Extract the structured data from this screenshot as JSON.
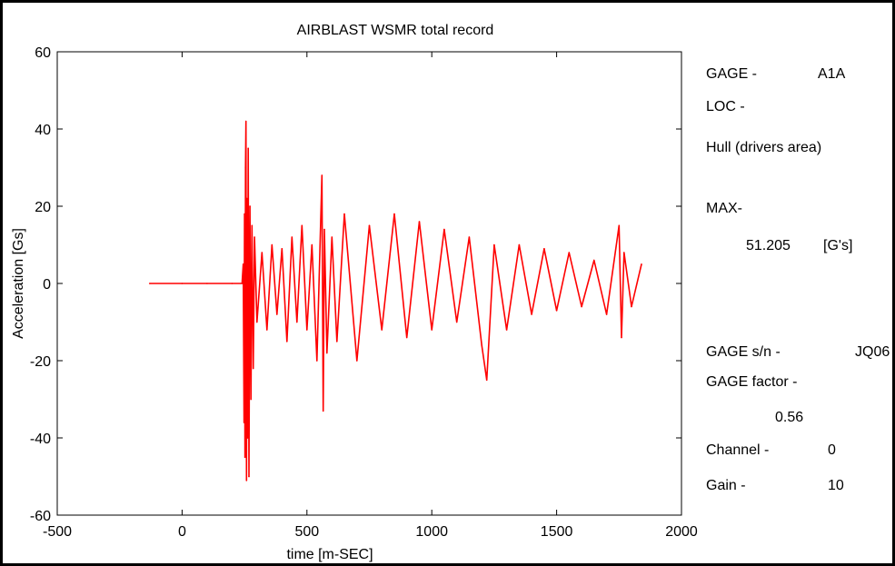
{
  "chart_data": {
    "type": "line",
    "title": "AIRBLAST  WSMR total record",
    "xlabel": "time [m-SEC]",
    "ylabel": "Acceleration [Gs]",
    "xlim": [
      -500,
      2000
    ],
    "ylim": [
      -60,
      60
    ],
    "xticks": [
      -500,
      0,
      500,
      1000,
      1500,
      2000
    ],
    "yticks": [
      -60,
      -40,
      -20,
      0,
      20,
      40,
      60
    ],
    "xtick_labels": [
      "-500",
      "0",
      "500",
      "1000",
      "1500",
      "2000"
    ],
    "ytick_labels": [
      "-60",
      "-40",
      "-20",
      "0",
      "20",
      "40",
      "60"
    ],
    "grid": false,
    "series": [
      {
        "color": "#ff0000",
        "x": [
          -130,
          0,
          100,
          200,
          240,
          245,
          248,
          250,
          252,
          254,
          256,
          258,
          260,
          262,
          265,
          268,
          272,
          276,
          280,
          285,
          290,
          300,
          320,
          340,
          360,
          380,
          400,
          420,
          440,
          460,
          480,
          500,
          520,
          540,
          560,
          565,
          570,
          580,
          600,
          620,
          650,
          700,
          750,
          800,
          850,
          900,
          950,
          1000,
          1050,
          1100,
          1150,
          1200,
          1220,
          1250,
          1300,
          1350,
          1400,
          1450,
          1500,
          1550,
          1600,
          1650,
          1700,
          1750,
          1760,
          1770,
          1800,
          1840
        ],
        "y": [
          0,
          0,
          0,
          0,
          0,
          5,
          -36,
          18,
          -45,
          30,
          42,
          -51,
          22,
          -40,
          35,
          -50,
          20,
          -30,
          15,
          -22,
          12,
          -10,
          8,
          -12,
          10,
          -8,
          9,
          -15,
          12,
          -10,
          15,
          -12,
          10,
          -20,
          28,
          -33,
          14,
          -18,
          12,
          -15,
          18,
          -20,
          15,
          -12,
          18,
          -14,
          16,
          -12,
          14,
          -10,
          12,
          -16,
          -25,
          10,
          -12,
          10,
          -8,
          9,
          -7,
          8,
          -6,
          6,
          -8,
          15,
          -14,
          8,
          -6,
          5
        ]
      }
    ]
  },
  "info_panel": {
    "gage_label": "GAGE -",
    "gage_value": "A1A",
    "loc_label": "LOC -",
    "loc_value": "Hull (drivers area)",
    "max_label": "MAX-",
    "max_value": "51.205",
    "max_unit": "[G's]",
    "sn_label": "GAGE s/n -",
    "sn_value": "JQ06",
    "factor_label": "GAGE factor -",
    "factor_value": "0.56",
    "channel_label": "Channel -",
    "channel_value": "0",
    "gain_label": "Gain -",
    "gain_value": "10"
  }
}
